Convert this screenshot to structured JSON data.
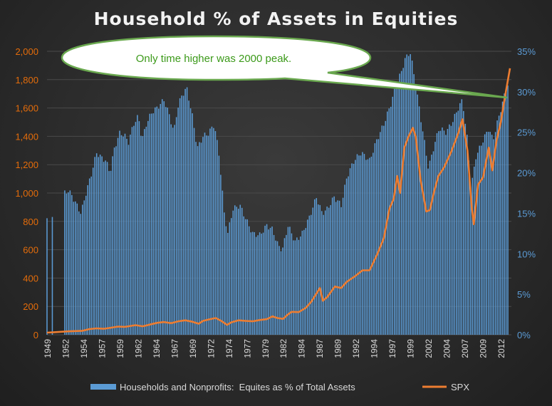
{
  "chart_data": {
    "type": "bar",
    "title": "Household % of Assets in Equities",
    "xlabel": "",
    "ylabel": "",
    "left_axis": {
      "ylim": [
        0,
        2000
      ],
      "ticks": [
        "0",
        "200",
        "400",
        "600",
        "800",
        "1,000",
        "1,200",
        "1,400",
        "1,600",
        "1,800",
        "2,000"
      ],
      "color": "#e46c0a"
    },
    "right_axis": {
      "ylim": [
        0,
        35
      ],
      "ticks": [
        "0%",
        "5%",
        "10%",
        "15%",
        "20%",
        "25%",
        "30%",
        "35%"
      ],
      "color": "#5b9bd5"
    },
    "x_range": [
      1949,
      2014.5
    ],
    "x_tick_labels": [
      "1949",
      "1952",
      "1954",
      "1957",
      "1959",
      "1962",
      "1964",
      "1967",
      "1969",
      "1972",
      "1974",
      "1977",
      "1979",
      "1982",
      "1984",
      "1987",
      "1989",
      "1992",
      "1994",
      "1997",
      "1999",
      "2002",
      "2004",
      "2007",
      "2009",
      "2012"
    ],
    "grid": true,
    "legend_position": "bottom",
    "annotation": "Only time higher was 2000 peak.",
    "series": [
      {
        "name": "Households and Nonprofits:  Equites as % of Total Assets",
        "kind": "bar",
        "axis": "right",
        "color": "#5b9bd5",
        "frequency": "quarterly",
        "anchors": [
          [
            1949.0,
            14.2
          ],
          [
            1949.8,
            14.2
          ],
          [
            1950.5,
            16.3
          ],
          [
            1951.5,
            17.5
          ],
          [
            1952.0,
            17.8
          ],
          [
            1952.5,
            17.2
          ],
          [
            1953.2,
            16.0
          ],
          [
            1953.8,
            15.0
          ],
          [
            1954.5,
            17.5
          ],
          [
            1955.3,
            20.0
          ],
          [
            1956.0,
            22.5
          ],
          [
            1956.5,
            22.0
          ],
          [
            1957.3,
            21.5
          ],
          [
            1957.9,
            20.0
          ],
          [
            1958.5,
            23.0
          ],
          [
            1959.3,
            25.0
          ],
          [
            1960.0,
            24.5
          ],
          [
            1960.5,
            23.8
          ],
          [
            1961.2,
            26.0
          ],
          [
            1961.9,
            27.0
          ],
          [
            1962.4,
            24.0
          ],
          [
            1963.0,
            26.0
          ],
          [
            1963.8,
            27.5
          ],
          [
            1964.5,
            28.0
          ],
          [
            1965.5,
            29.0
          ],
          [
            1966.3,
            27.0
          ],
          [
            1966.9,
            25.0
          ],
          [
            1967.4,
            28.0
          ],
          [
            1968.0,
            29.5
          ],
          [
            1968.7,
            30.5
          ],
          [
            1969.5,
            27.0
          ],
          [
            1970.2,
            23.0
          ],
          [
            1971.0,
            24.5
          ],
          [
            1971.7,
            24.8
          ],
          [
            1972.6,
            26.0
          ],
          [
            1973.3,
            22.0
          ],
          [
            1974.0,
            15.0
          ],
          [
            1974.5,
            12.5
          ],
          [
            1975.2,
            15.5
          ],
          [
            1976.2,
            16.0
          ],
          [
            1977.2,
            14.0
          ],
          [
            1978.0,
            12.5
          ],
          [
            1979.0,
            12.3
          ],
          [
            1980.0,
            13.5
          ],
          [
            1980.8,
            13.0
          ],
          [
            1981.6,
            11.0
          ],
          [
            1982.2,
            10.5
          ],
          [
            1983.0,
            13.5
          ],
          [
            1984.0,
            11.5
          ],
          [
            1985.0,
            12.5
          ],
          [
            1986.0,
            14.5
          ],
          [
            1987.0,
            17.0
          ],
          [
            1987.8,
            15.0
          ],
          [
            1988.5,
            15.5
          ],
          [
            1989.5,
            17.0
          ],
          [
            1990.5,
            16.0
          ],
          [
            1991.3,
            19.5
          ],
          [
            1992.3,
            21.5
          ],
          [
            1993.3,
            22.5
          ],
          [
            1994.5,
            21.5
          ],
          [
            1995.5,
            24.0
          ],
          [
            1996.5,
            26.0
          ],
          [
            1997.5,
            28.5
          ],
          [
            1998.3,
            31.0
          ],
          [
            1998.8,
            32.0
          ],
          [
            1999.5,
            34.0
          ],
          [
            2000.2,
            35.0
          ],
          [
            2000.8,
            32.0
          ],
          [
            2001.5,
            28.0
          ],
          [
            2002.2,
            24.0
          ],
          [
            2002.8,
            20.5
          ],
          [
            2003.5,
            23.0
          ],
          [
            2004.3,
            25.5
          ],
          [
            2005.3,
            25.0
          ],
          [
            2006.3,
            26.5
          ],
          [
            2007.0,
            28.0
          ],
          [
            2007.6,
            29.0
          ],
          [
            2008.3,
            24.0
          ],
          [
            2008.8,
            18.0
          ],
          [
            2009.5,
            22.0
          ],
          [
            2010.5,
            24.0
          ],
          [
            2011.3,
            25.5
          ],
          [
            2011.9,
            24.0
          ],
          [
            2012.6,
            26.5
          ],
          [
            2013.5,
            29.5
          ],
          [
            2014.2,
            31.5
          ]
        ]
      },
      {
        "name": "SPX",
        "kind": "line",
        "axis": "left",
        "color": "#ed7d31",
        "points": [
          [
            1949.0,
            15
          ],
          [
            1950.0,
            18
          ],
          [
            1952.0,
            24
          ],
          [
            1954.0,
            28
          ],
          [
            1955.0,
            40
          ],
          [
            1956.0,
            45
          ],
          [
            1957.0,
            42
          ],
          [
            1958.0,
            50
          ],
          [
            1959.0,
            58
          ],
          [
            1960.0,
            56
          ],
          [
            1961.5,
            68
          ],
          [
            1962.5,
            60
          ],
          [
            1963.5,
            72
          ],
          [
            1964.5,
            84
          ],
          [
            1965.5,
            90
          ],
          [
            1966.5,
            82
          ],
          [
            1967.5,
            95
          ],
          [
            1968.5,
            102
          ],
          [
            1969.5,
            92
          ],
          [
            1970.4,
            78
          ],
          [
            1971.0,
            98
          ],
          [
            1972.0,
            110
          ],
          [
            1972.8,
            118
          ],
          [
            1973.5,
            100
          ],
          [
            1974.4,
            70
          ],
          [
            1975.0,
            88
          ],
          [
            1976.0,
            102
          ],
          [
            1977.0,
            98
          ],
          [
            1978.0,
            95
          ],
          [
            1979.0,
            104
          ],
          [
            1980.0,
            110
          ],
          [
            1980.8,
            130
          ],
          [
            1981.5,
            118
          ],
          [
            1982.3,
            112
          ],
          [
            1982.9,
            140
          ],
          [
            1983.5,
            162
          ],
          [
            1984.5,
            160
          ],
          [
            1985.5,
            190
          ],
          [
            1986.3,
            235
          ],
          [
            1987.5,
            330
          ],
          [
            1987.9,
            240
          ],
          [
            1988.5,
            265
          ],
          [
            1989.6,
            340
          ],
          [
            1990.5,
            330
          ],
          [
            1991.3,
            375
          ],
          [
            1992.5,
            415
          ],
          [
            1993.5,
            455
          ],
          [
            1994.5,
            455
          ],
          [
            1995.5,
            560
          ],
          [
            1996.5,
            680
          ],
          [
            1997.3,
            890
          ],
          [
            1997.9,
            960
          ],
          [
            1998.4,
            1120
          ],
          [
            1998.8,
            1000
          ],
          [
            1999.4,
            1320
          ],
          [
            2000.0,
            1400
          ],
          [
            2000.6,
            1460
          ],
          [
            2001.0,
            1400
          ],
          [
            2001.7,
            1090
          ],
          [
            2002.5,
            870
          ],
          [
            2003.0,
            880
          ],
          [
            2003.6,
            1010
          ],
          [
            2004.2,
            1120
          ],
          [
            2005.0,
            1180
          ],
          [
            2006.0,
            1290
          ],
          [
            2007.0,
            1420
          ],
          [
            2007.6,
            1520
          ],
          [
            2008.3,
            1300
          ],
          [
            2008.9,
            900
          ],
          [
            2009.2,
            780
          ],
          [
            2009.8,
            1060
          ],
          [
            2010.5,
            1110
          ],
          [
            2011.3,
            1320
          ],
          [
            2011.8,
            1160
          ],
          [
            2012.4,
            1370
          ],
          [
            2013.0,
            1500
          ],
          [
            2013.6,
            1680
          ],
          [
            2014.3,
            1880
          ]
        ]
      }
    ]
  }
}
